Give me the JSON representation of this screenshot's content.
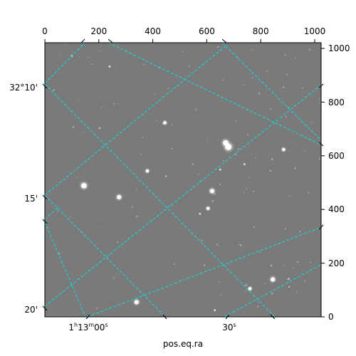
{
  "figure": {
    "xlabel": "pos.eq.ra",
    "top_ticks": [
      "0",
      "200",
      "400",
      "600",
      "800",
      "1000"
    ],
    "right_ticks": [
      "0",
      "200",
      "400",
      "600",
      "800",
      "1000"
    ],
    "dec_ticks": [
      "32°10'",
      "15'",
      "20'"
    ],
    "ra_ticks": [
      {
        "hours": "1",
        "h_unit": "h",
        "minutes": "13",
        "m_unit": "m",
        "seconds": "00",
        "s_unit": "s"
      },
      {
        "seconds": "30",
        "s_unit": "s"
      }
    ]
  },
  "colors": {
    "sky_background": "#7a7a7a",
    "grid": "#00e5e5",
    "axes": "#000000"
  },
  "pixel_range": {
    "x": [
      0,
      1024
    ],
    "y": [
      0,
      1024
    ]
  },
  "stars": [
    {
      "x": 145,
      "y": 490,
      "mag": 2
    },
    {
      "x": 680,
      "y": 635,
      "mag": 1
    },
    {
      "x": 670,
      "y": 650,
      "mag": 2
    },
    {
      "x": 275,
      "y": 447,
      "mag": 3
    },
    {
      "x": 620,
      "y": 470,
      "mag": 3
    },
    {
      "x": 885,
      "y": 625,
      "mag": 4
    },
    {
      "x": 445,
      "y": 725,
      "mag": 4
    },
    {
      "x": 380,
      "y": 545,
      "mag": 4
    },
    {
      "x": 605,
      "y": 405,
      "mag": 4
    },
    {
      "x": 575,
      "y": 385,
      "mag": 5
    },
    {
      "x": 650,
      "y": 550,
      "mag": 5
    },
    {
      "x": 740,
      "y": 570,
      "mag": 5
    },
    {
      "x": 240,
      "y": 935,
      "mag": 5
    },
    {
      "x": 100,
      "y": 975,
      "mag": 5
    },
    {
      "x": 955,
      "y": 855,
      "mag": 6
    },
    {
      "x": 560,
      "y": 775,
      "mag": 6
    },
    {
      "x": 270,
      "y": 280,
      "mag": 6
    },
    {
      "x": 340,
      "y": 55,
      "mag": 3
    },
    {
      "x": 845,
      "y": 140,
      "mag": 3
    },
    {
      "x": 760,
      "y": 105,
      "mag": 4
    },
    {
      "x": 630,
      "y": 25,
      "mag": 5
    },
    {
      "x": 900,
      "y": 140,
      "mag": 6
    },
    {
      "x": 775,
      "y": 335,
      "mag": 6
    },
    {
      "x": 535,
      "y": 935,
      "mag": 6
    }
  ]
}
